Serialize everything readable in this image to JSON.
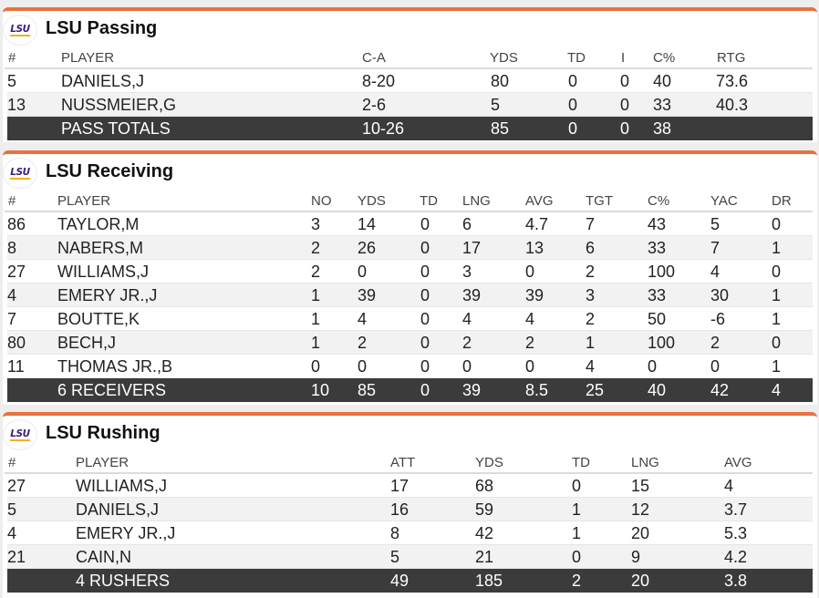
{
  "passing": {
    "logo": "LSU",
    "title": "LSU Passing",
    "headers": {
      "num": "#",
      "player": "PLAYER",
      "ca": "C-A",
      "yds": "YDS",
      "td": "TD",
      "int": "I",
      "pct": "C%",
      "rtg": "RTG"
    },
    "rows": [
      {
        "num": "5",
        "player": "DANIELS,J",
        "ca": "8-20",
        "yds": "80",
        "td": "0",
        "int": "0",
        "pct": "40",
        "rtg": "73.6"
      },
      {
        "num": "13",
        "player": "NUSSMEIER,G",
        "ca": "2-6",
        "yds": "5",
        "td": "0",
        "int": "0",
        "pct": "33",
        "rtg": "40.3"
      }
    ],
    "total": {
      "player": "PASS TOTALS",
      "ca": "10-26",
      "yds": "85",
      "td": "0",
      "int": "0",
      "pct": "38"
    }
  },
  "receiving": {
    "logo": "LSU",
    "title": "LSU Receiving",
    "headers": {
      "num": "#",
      "player": "PLAYER",
      "no": "NO",
      "yds": "YDS",
      "td": "TD",
      "lng": "LNG",
      "avg": "AVG",
      "tgt": "TGT",
      "pct": "C%",
      "yac": "YAC",
      "dr": "DR"
    },
    "rows": [
      {
        "num": "86",
        "player": "TAYLOR,M",
        "no": "3",
        "yds": "14",
        "td": "0",
        "lng": "6",
        "avg": "4.7",
        "tgt": "7",
        "pct": "43",
        "yac": "5",
        "dr": "0"
      },
      {
        "num": "8",
        "player": "NABERS,M",
        "no": "2",
        "yds": "26",
        "td": "0",
        "lng": "17",
        "avg": "13",
        "tgt": "6",
        "pct": "33",
        "yac": "7",
        "dr": "1"
      },
      {
        "num": "27",
        "player": "WILLIAMS,J",
        "no": "2",
        "yds": "0",
        "td": "0",
        "lng": "3",
        "avg": "0",
        "tgt": "2",
        "pct": "100",
        "yac": "4",
        "dr": "0"
      },
      {
        "num": "4",
        "player": "EMERY JR.,J",
        "no": "1",
        "yds": "39",
        "td": "0",
        "lng": "39",
        "avg": "39",
        "tgt": "3",
        "pct": "33",
        "yac": "30",
        "dr": "1"
      },
      {
        "num": "7",
        "player": "BOUTTE,K",
        "no": "1",
        "yds": "4",
        "td": "0",
        "lng": "4",
        "avg": "4",
        "tgt": "2",
        "pct": "50",
        "yac": "-6",
        "dr": "1"
      },
      {
        "num": "80",
        "player": "BECH,J",
        "no": "1",
        "yds": "2",
        "td": "0",
        "lng": "2",
        "avg": "2",
        "tgt": "1",
        "pct": "100",
        "yac": "2",
        "dr": "0"
      },
      {
        "num": "11",
        "player": "THOMAS JR.,B",
        "no": "0",
        "yds": "0",
        "td": "0",
        "lng": "0",
        "avg": "0",
        "tgt": "4",
        "pct": "0",
        "yac": "0",
        "dr": "1"
      }
    ],
    "total": {
      "player": "6 RECEIVERS",
      "no": "10",
      "yds": "85",
      "td": "0",
      "lng": "39",
      "avg": "8.5",
      "tgt": "25",
      "pct": "40",
      "yac": "42",
      "dr": "4"
    }
  },
  "rushing": {
    "logo": "LSU",
    "title": "LSU Rushing",
    "headers": {
      "num": "#",
      "player": "PLAYER",
      "att": "ATT",
      "yds": "YDS",
      "td": "TD",
      "lng": "LNG",
      "avg": "AVG"
    },
    "rows": [
      {
        "num": "27",
        "player": "WILLIAMS,J",
        "att": "17",
        "yds": "68",
        "td": "0",
        "lng": "15",
        "avg": "4"
      },
      {
        "num": "5",
        "player": "DANIELS,J",
        "att": "16",
        "yds": "59",
        "td": "1",
        "lng": "12",
        "avg": "3.7"
      },
      {
        "num": "4",
        "player": "EMERY JR.,J",
        "att": "8",
        "yds": "42",
        "td": "1",
        "lng": "20",
        "avg": "5.3"
      },
      {
        "num": "21",
        "player": "CAIN,N",
        "att": "5",
        "yds": "21",
        "td": "0",
        "lng": "9",
        "avg": "4.2"
      }
    ],
    "total": {
      "player": "4 RUSHERS",
      "att": "49",
      "yds": "185",
      "td": "2",
      "lng": "20",
      "avg": "3.8"
    }
  }
}
